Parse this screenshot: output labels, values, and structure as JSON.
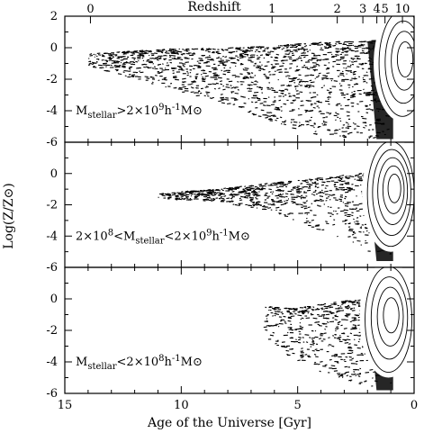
{
  "chart_data": {
    "type": "scatter",
    "xlabel": "Age of the Universe [Gyr]",
    "ylabel": "Log(Z/Z⊙)",
    "top_axis_label": "Redshift",
    "xlim": [
      15,
      0
    ],
    "ylim": [
      -6,
      2
    ],
    "x_ticks": [
      "15",
      "10",
      "5",
      "0"
    ],
    "y_ticks": [
      "-6",
      "-4",
      "-2",
      "0",
      "2"
    ],
    "redshift_ticks": [
      {
        "label": "0",
        "age": 13.9
      },
      {
        "label": "1",
        "age": 6.1
      },
      {
        "label": "2",
        "age": 3.3
      },
      {
        "label": "3",
        "age": 2.2
      },
      {
        "label": "4",
        "age": 1.6
      },
      {
        "label": "5",
        "age": 1.25
      },
      {
        "label": "10",
        "age": 0.5
      }
    ],
    "panels": [
      {
        "label_parts": [
          "M",
          "stellar",
          ">2×10",
          "9",
          "h",
          "-1",
          "M",
          "⊙"
        ],
        "series": [
          {
            "type": "band",
            "age_start": 14.0,
            "age_end": 1.0,
            "z_top": [
              -0.4,
              -0.1,
              0.0,
              0.3,
              0.5
            ],
            "z_bottom": [
              -1.2,
              -2.5,
              -4.0,
              -5.8,
              -5.8
            ],
            "density": 0.9
          },
          {
            "type": "contour",
            "center_age": 0.5,
            "center_z": -1.0,
            "levels": 4
          }
        ]
      },
      {
        "label_parts": [
          "2×10",
          "8",
          "<M",
          "stellar",
          "<2×10",
          "9",
          "h",
          "-1",
          "M",
          "⊙"
        ],
        "series": [
          {
            "type": "band",
            "age_start": 11.0,
            "age_end": 1.0,
            "z_top": [
              -1.3,
              -1.0,
              -0.6,
              -0.2,
              0.2
            ],
            "z_bottom": [
              -1.6,
              -1.8,
              -2.5,
              -4.0,
              -5.6
            ],
            "density": 0.5
          },
          {
            "type": "contour",
            "center_age": 1.0,
            "center_z": -1.3,
            "levels": 5
          }
        ]
      },
      {
        "label_parts": [
          "M",
          "stellar",
          "<2×10",
          "8",
          "h",
          "-1",
          "M",
          "⊙"
        ],
        "series": [
          {
            "type": "band",
            "age_start": 6.5,
            "age_end": 1.0,
            "z_top": [
              -0.5,
              -0.6,
              -0.3,
              0.0,
              0.5
            ],
            "z_bottom": [
              -2.5,
              -4.0,
              -4.8,
              -5.5,
              -5.8
            ],
            "density": 0.35
          },
          {
            "type": "contour",
            "center_age": 1.1,
            "center_z": -1.3,
            "levels": 4
          }
        ]
      }
    ]
  }
}
